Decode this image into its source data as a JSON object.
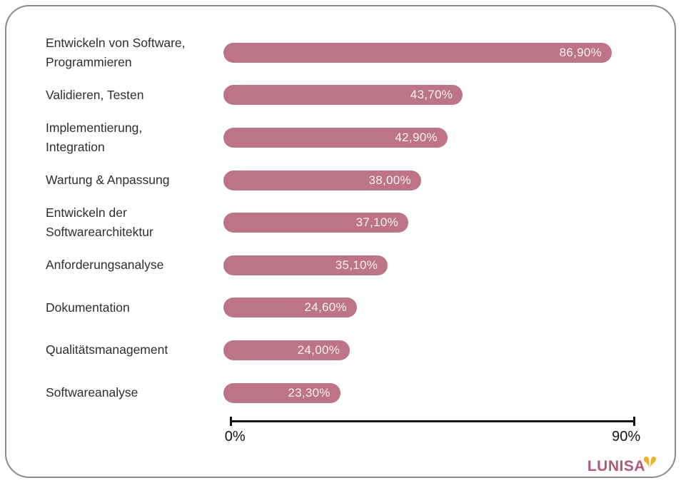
{
  "chart_data": {
    "type": "bar",
    "orientation": "horizontal",
    "title": "",
    "categories": [
      "Entwickeln von Software,\nProgrammieren",
      "Validieren, Testen",
      "Implementierung,\nIntegration",
      "Wartung & Anpassung",
      "Entwickeln der\nSoftwarearchitektur",
      "Anforderungsanalyse",
      "Dokumentation",
      "Qualitätsmanagement",
      "Softwareanalyse"
    ],
    "values": [
      86.9,
      43.7,
      42.9,
      38.0,
      37.1,
      35.1,
      24.6,
      24.0,
      23.3
    ],
    "value_labels": [
      "86,90%",
      "43,70%",
      "42,90%",
      "38,00%",
      "37,10%",
      "35,10%",
      "24,60%",
      "24,00%",
      "23,30%"
    ],
    "xlim": [
      0,
      90
    ],
    "axis_tick_labels": [
      "0%",
      "90%"
    ],
    "grid": false,
    "legend": false,
    "bar_color": "#bd7388",
    "value_label_color": "#f8f1f3",
    "category_label_color": "#2e2e2e",
    "axis_color": "#141414",
    "bar_visual_pct": [
      94.3,
      58.1,
      54.4,
      48.0,
      44.9,
      39.9,
      32.4,
      30.7,
      28.4
    ]
  },
  "card": {
    "border_color": "#8b8b8b"
  },
  "footer": {
    "logo_text": "LUNISA",
    "logo_color": "#b25a73",
    "heart_color": "#ecb22e"
  }
}
